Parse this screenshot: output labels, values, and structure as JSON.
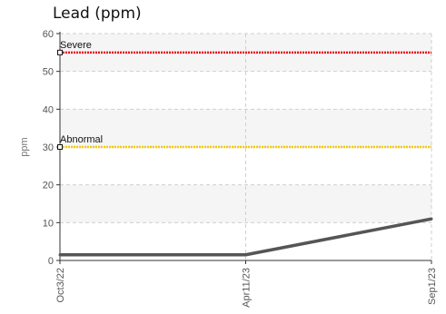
{
  "chart_data": {
    "type": "line",
    "title": "Lead (ppm)",
    "ylabel": "ppm",
    "xlabel": "",
    "ylim": [
      0,
      60
    ],
    "yticks": [
      0,
      10,
      20,
      30,
      40,
      50,
      60
    ],
    "x": [
      "Oct3/22",
      "Apr11/23",
      "Sep1/23"
    ],
    "series": [
      {
        "values": [
          1.5,
          1.5,
          11
        ],
        "color": "#555555"
      }
    ],
    "reference_lines": [
      {
        "label": "Severe",
        "value": 55,
        "color": "#e8141c"
      },
      {
        "label": "Abnormal",
        "value": 30,
        "color": "#f2cc0c"
      }
    ],
    "grid": true
  }
}
